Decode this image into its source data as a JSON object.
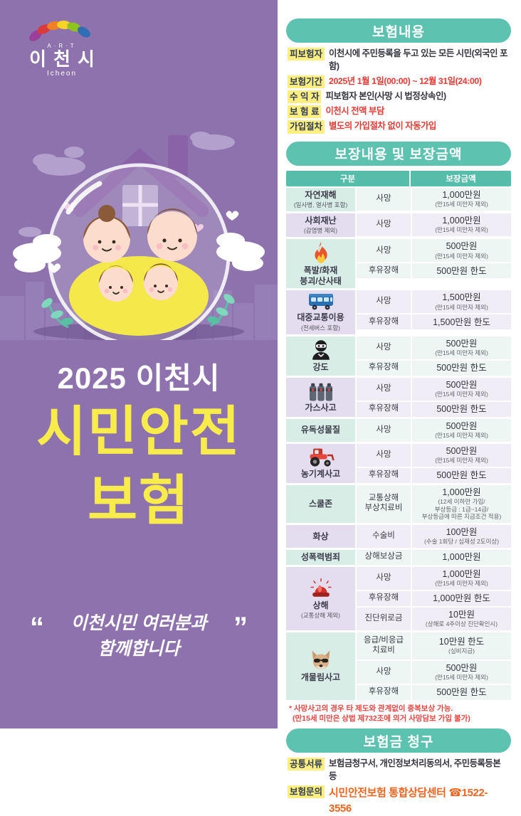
{
  "brand": {
    "art": "A·R·T",
    "city": "이천시",
    "city_en": "Icheon"
  },
  "poster": {
    "year_line": "2025 이천시",
    "title_line1": "시민안전",
    "title_line2": "보험",
    "open_quote": "“",
    "close_quote": "”",
    "quote_line1": "이천시민 여러분과",
    "quote_line2": "함께합니다"
  },
  "colors": {
    "panel_purple": "#8d72ad",
    "pill_teal": "#5ec2b0",
    "table_header_teal": "#57bdab",
    "highlight_yellow": "#fcee80",
    "title_yellow": "#f8ec4d",
    "emphasis_red": "#e63a35",
    "contact_orange": "#f2641f"
  },
  "insurance_info": {
    "header": "보험내용",
    "rows": [
      {
        "label": "피보험자",
        "value": "이천시에 주민등록을 두고 있는 모든 시민(외국인 포함)",
        "emphasis": false
      },
      {
        "label": "보험기간",
        "value": "2025년 1월 1일(00:00) ~ 12월 31일(24:00)",
        "emphasis": true
      },
      {
        "label": "수 익 자",
        "value": "피보험자 본인(사망 시 법정상속인)",
        "emphasis": false
      },
      {
        "label": "보 험 료",
        "value": "이천시 전액 부담",
        "emphasis": true
      },
      {
        "label": "가입절차",
        "value": "별도의 가입절차 없이 자동가입",
        "emphasis": true
      }
    ]
  },
  "coverage": {
    "header": "보장내용 및 보장금액",
    "col_category": "구분",
    "col_amount": "보장금액",
    "groups": [
      {
        "category": "자연재해",
        "subtitle": "(일사병, 열사병 포함)",
        "icon": "",
        "tint": "mint",
        "details": [
          {
            "item": "사망",
            "amount": "1,000만원",
            "note": "(만15세 미만자 제외)"
          }
        ]
      },
      {
        "category": "사회재난",
        "subtitle": "(감염병 제외)",
        "icon": "",
        "tint": "purple",
        "details": [
          {
            "item": "사망",
            "amount": "1,000만원",
            "note": "(만15세 미만자 제외)"
          }
        ]
      },
      {
        "category": "폭발/화재\n붕괴/산사태",
        "subtitle": "",
        "icon": "fire-icon",
        "tint": "mint",
        "details": [
          {
            "item": "사망",
            "amount": "500만원",
            "note": "(만15세 미만자 제외)"
          },
          {
            "item": "후유장해",
            "amount": "500만원 한도",
            "note": ""
          }
        ]
      },
      {
        "category": "대중교통이용",
        "subtitle": "(전세버스 포함)",
        "icon": "bus-icon",
        "tint": "purple",
        "details": [
          {
            "item": "사망",
            "amount": "1,500만원",
            "note": "(만15세 미만자 제외)"
          },
          {
            "item": "후유장해",
            "amount": "1,500만원 한도",
            "note": ""
          }
        ]
      },
      {
        "category": "강도",
        "subtitle": "",
        "icon": "robber-icon",
        "tint": "mint",
        "details": [
          {
            "item": "사망",
            "amount": "500만원",
            "note": "(만15세 미만자 제외)"
          },
          {
            "item": "후유장해",
            "amount": "500만원 한도",
            "note": ""
          }
        ]
      },
      {
        "category": "가스사고",
        "subtitle": "",
        "icon": "gas-icon",
        "tint": "purple",
        "details": [
          {
            "item": "사망",
            "amount": "500만원",
            "note": "(만15세 미만자 제외)"
          },
          {
            "item": "후유장해",
            "amount": "500만원 한도",
            "note": ""
          }
        ]
      },
      {
        "category": "유독성물질",
        "subtitle": "",
        "icon": "",
        "tint": "mint",
        "details": [
          {
            "item": "사망",
            "amount": "500만원",
            "note": "(만15세 미만자 제외)"
          }
        ]
      },
      {
        "category": "농기계사고",
        "subtitle": "",
        "icon": "tractor-icon",
        "tint": "purple",
        "details": [
          {
            "item": "사망",
            "amount": "500만원",
            "note": "(만15세 미만자 제외)"
          },
          {
            "item": "후유장해",
            "amount": "500만원 한도",
            "note": ""
          }
        ]
      },
      {
        "category": "스쿨존",
        "subtitle": "",
        "icon": "",
        "tint": "mint",
        "details": [
          {
            "item": "교통상해\n부상치료비",
            "amount": "1,000만원",
            "note": "(12세 이하만 가입/\n부상등급 : 1급~14급/\n부상등급에 따른 지급조건 적용)"
          }
        ]
      },
      {
        "category": "화상",
        "subtitle": "",
        "icon": "",
        "tint": "purple",
        "details": [
          {
            "item": "수술비",
            "amount": "100만원",
            "note": "(수술 1회당 / 심재성 2도이상)"
          }
        ]
      },
      {
        "category": "성폭력범죄",
        "subtitle": "",
        "icon": "",
        "tint": "mint",
        "details": [
          {
            "item": "상해보상금",
            "amount": "1,000만원",
            "note": ""
          }
        ]
      },
      {
        "category": "상해",
        "subtitle": "(교통상해 제외)",
        "icon": "siren-icon",
        "tint": "purple",
        "details": [
          {
            "item": "사망",
            "amount": "1,000만원",
            "note": "(만15세 미만자 제외)"
          },
          {
            "item": "후유장해",
            "amount": "1,000만원 한도",
            "note": ""
          },
          {
            "item": "진단위로금",
            "amount": "10만원",
            "note": "(상해로 4주이상 진단확인시)"
          }
        ]
      },
      {
        "category": "개물림사고",
        "subtitle": "",
        "icon": "dog-icon",
        "tint": "mint",
        "details": [
          {
            "item": "응급/비응급\n치료비",
            "amount": "10만원 한도",
            "note": "(실비지급)"
          },
          {
            "item": "사망",
            "amount": "500만원",
            "note": "(만15세 미만자 제외)"
          },
          {
            "item": "후유장해",
            "amount": "500만원 한도",
            "note": ""
          }
        ]
      }
    ],
    "footnote_line1": "* 사망사고의 경우 타 제도와 관계없이 중복보상 가능.",
    "footnote_line2": "(만15세 미만은 상법 제732조에 의거 사망담보 가입 불가)"
  },
  "claim": {
    "header": "보험금 청구",
    "rows": [
      {
        "label": "공통서류",
        "value": "보험금청구서, 개인정보처리동의서, 주민등록등본 등",
        "emphasis": false
      },
      {
        "label": "보험문의",
        "value": "시민안전보험 통합상담센터 ☎1522-3556",
        "emphasis": true
      }
    ]
  }
}
